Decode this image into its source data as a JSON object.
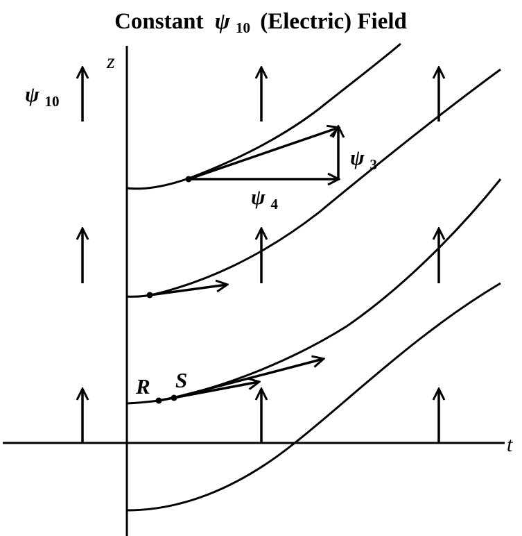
{
  "title": {
    "prefix": "Constant",
    "symbol": "ψ",
    "subscript": "10",
    "suffix": "(Electric) Field"
  },
  "axes": {
    "horizontal_label": "t",
    "vertical_label": "z"
  },
  "field_label": {
    "symbol": "ψ",
    "subscript": "10"
  },
  "vector_labels": {
    "horizontal": {
      "symbol": "ψ",
      "subscript": "4"
    },
    "vertical": {
      "symbol": "ψ",
      "subscript": "3"
    }
  },
  "point_labels": {
    "first": "R",
    "second": "S"
  },
  "colors": {
    "ink": "#000000",
    "background": "#ffffff"
  }
}
